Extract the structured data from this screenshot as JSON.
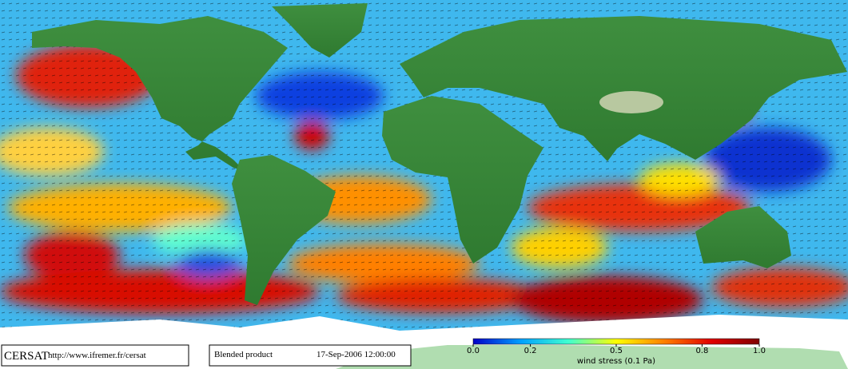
{
  "footer": {
    "logo": "CERSAT",
    "url": "http://www.ifremer.fr/cersat",
    "product": "Blended product",
    "date": "17-Sep-2006 12:00:00"
  },
  "colorbar": {
    "label": "wind stress (0.1 Pa)",
    "lim": [
      0,
      1
    ],
    "ticks": [
      {
        "value": 0,
        "label": "0.0"
      },
      0.2,
      0.5,
      0.8,
      {
        "value": 1,
        "label": "1.0"
      }
    ],
    "colors": [
      "#0000c8",
      "#00a0ff",
      "#40ffd0",
      "#ffff00",
      "#ff8000",
      "#e00000",
      "#800000"
    ]
  }
}
